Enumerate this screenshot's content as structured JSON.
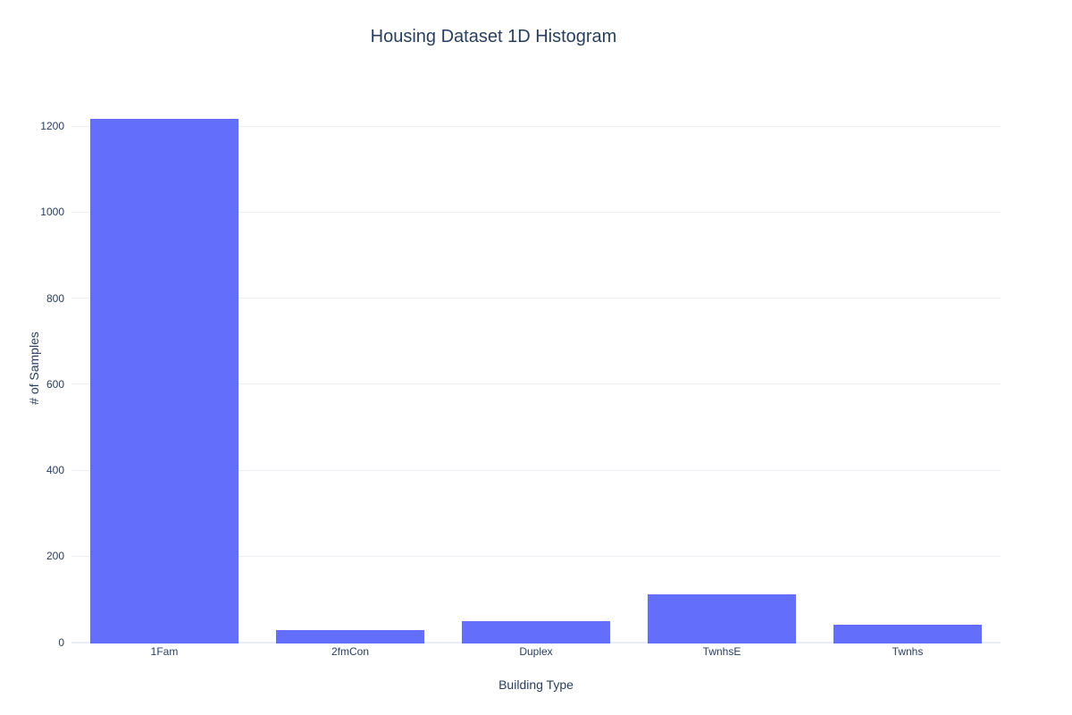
{
  "chart_data": {
    "type": "bar",
    "title": "Housing Dataset 1D Histogram",
    "xlabel": "Building Type",
    "ylabel": "# of Samples",
    "categories": [
      "1Fam",
      "2fmCon",
      "Duplex",
      "TwnhsE",
      "Twnhs"
    ],
    "values": [
      1220,
      31,
      52,
      114,
      43
    ],
    "yticks": [
      0,
      200,
      400,
      600,
      800,
      1000,
      1200
    ],
    "ylim": [
      0,
      1275
    ],
    "grid": true,
    "legend": "none",
    "colors": {
      "bar": "#636EFA",
      "grid": "#EBF0F8",
      "zeroline": "#E8ECF4",
      "text": "#2A3F5F",
      "background": "#FFFFFF"
    }
  }
}
